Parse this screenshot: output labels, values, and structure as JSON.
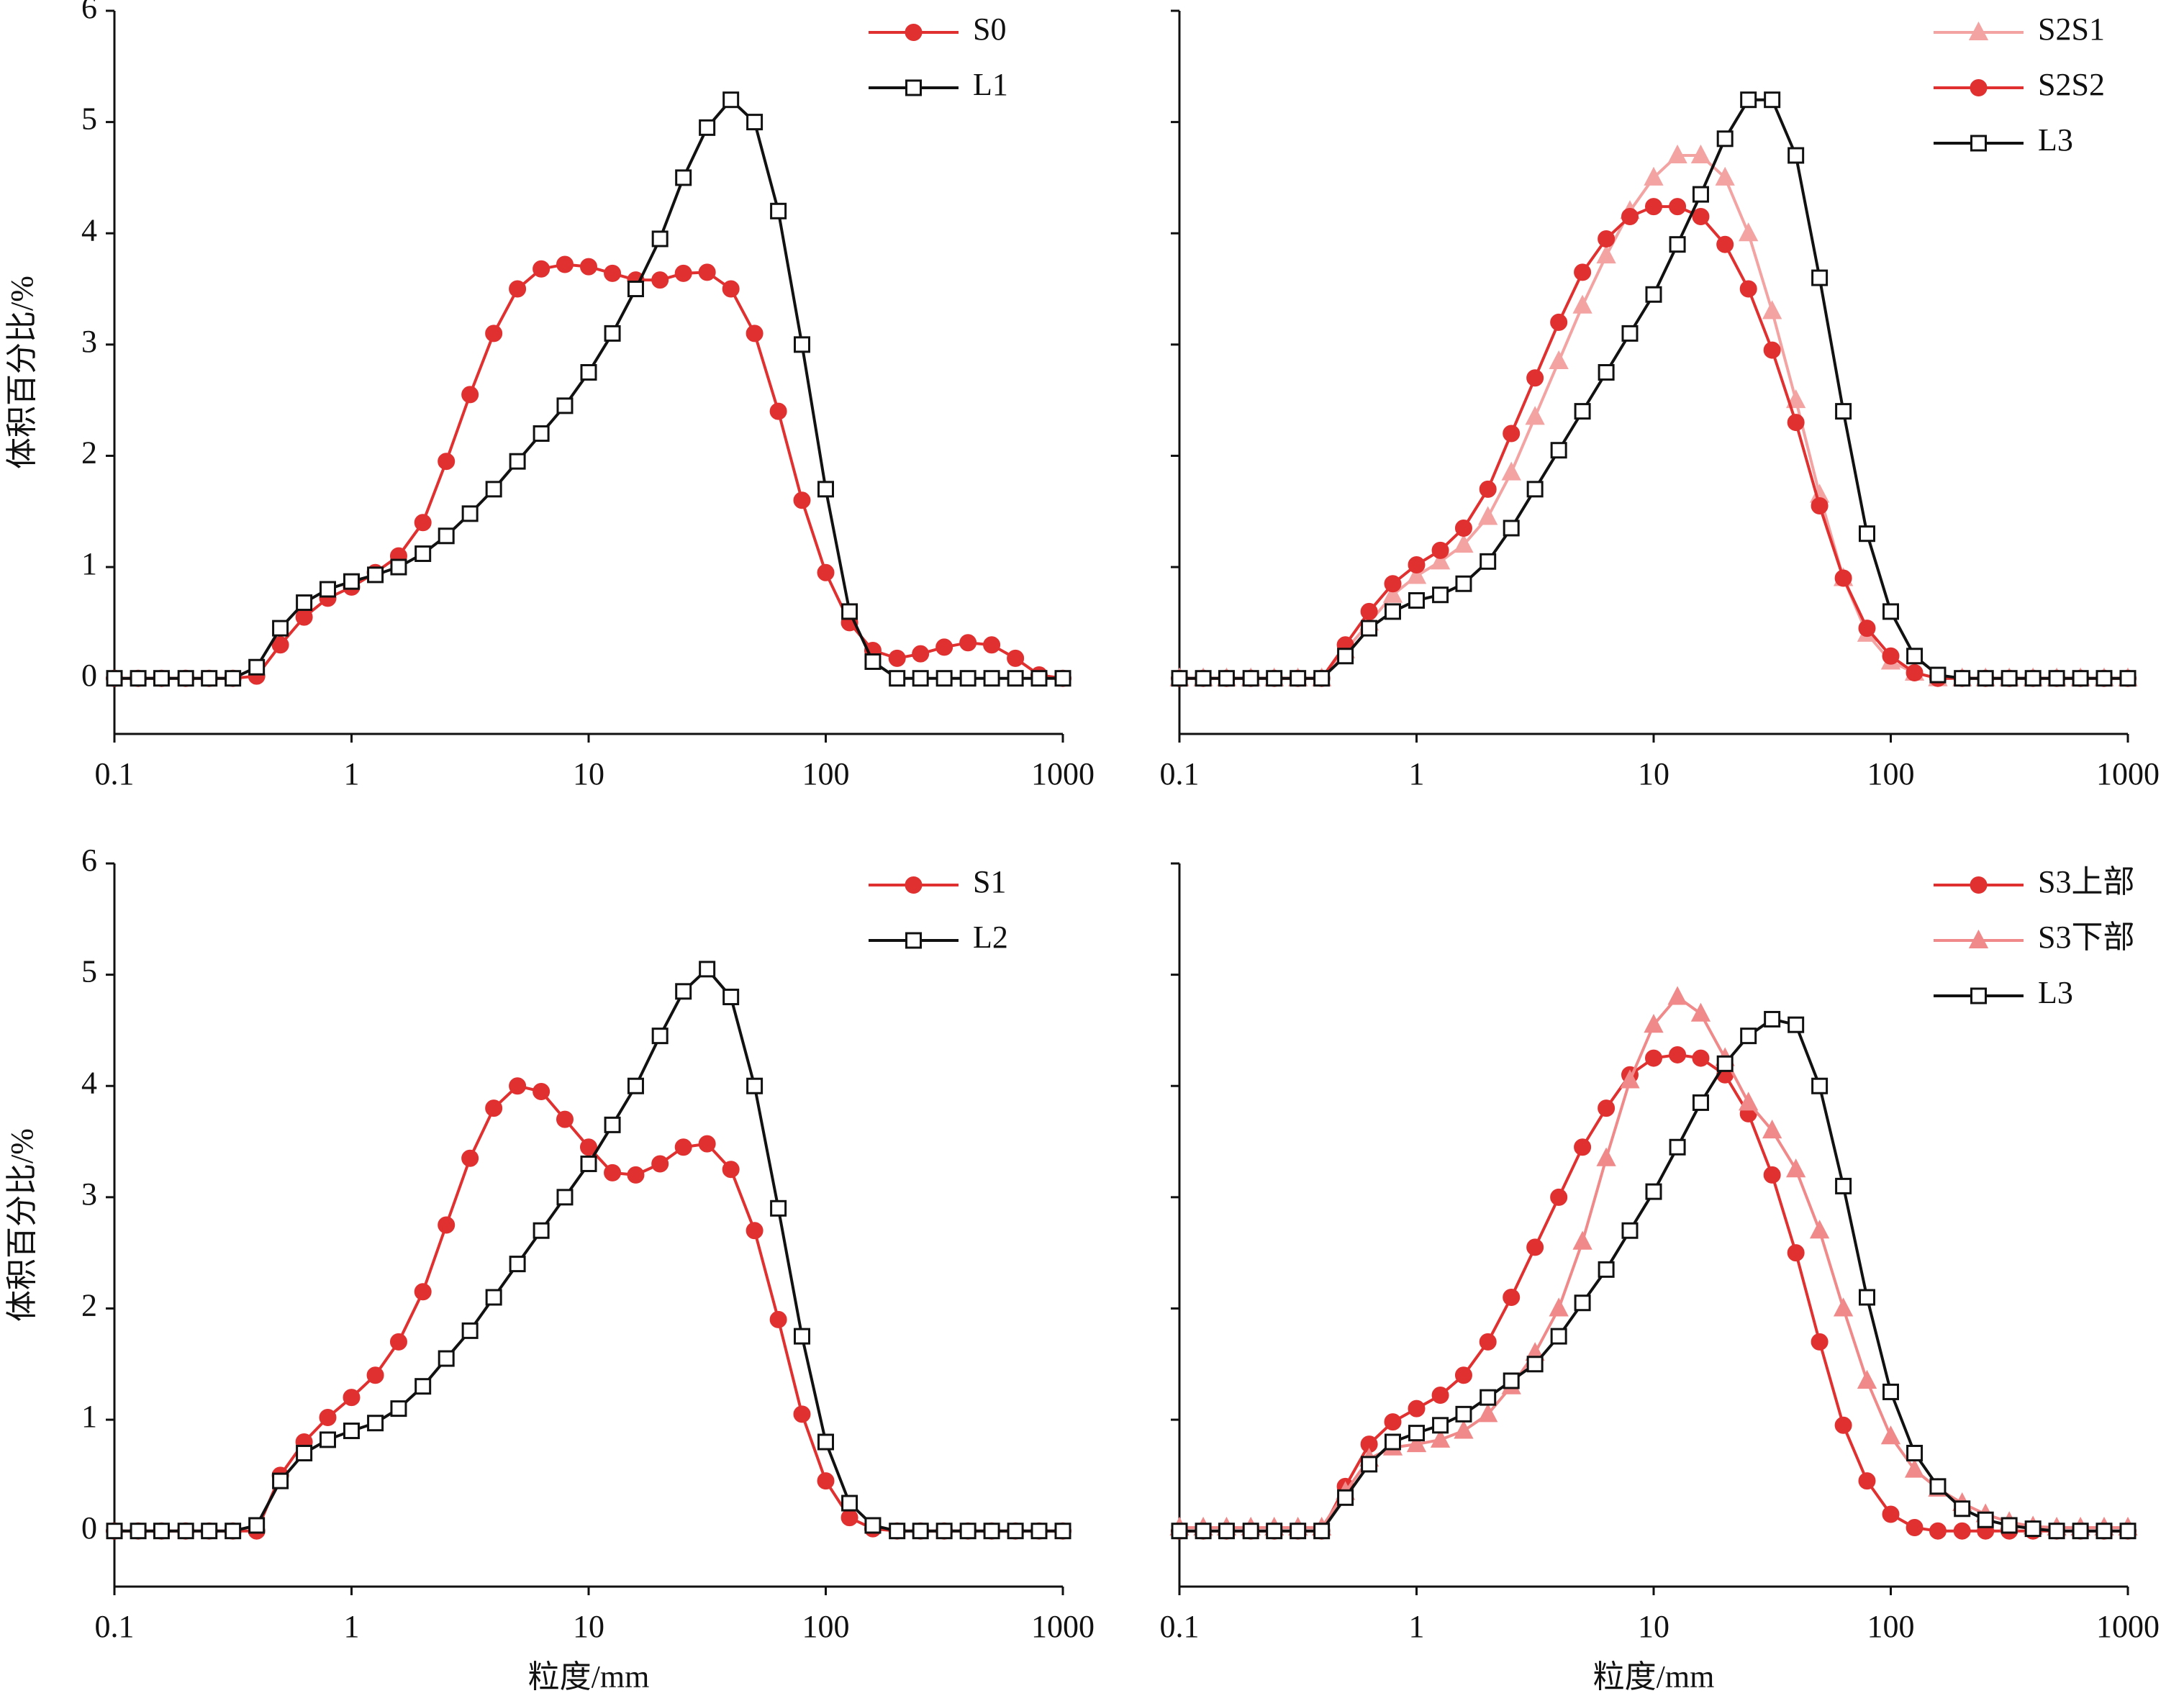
{
  "chart_data": [
    {
      "type": "line",
      "log_x": true,
      "legend": "upper right",
      "ytick_labels": true,
      "y_label": "体积百分比/%",
      "xlim": [
        0.1,
        1000
      ],
      "ylim": [
        -0.5,
        6
      ],
      "xticks": [
        0.1,
        1,
        10,
        100,
        1000
      ],
      "yticks": [
        0,
        1,
        2,
        3,
        4,
        5,
        6
      ],
      "x": [
        0.1,
        0.126,
        0.158,
        0.2,
        0.251,
        0.316,
        0.398,
        0.501,
        0.631,
        0.794,
        1,
        1.26,
        1.58,
        2,
        2.51,
        3.16,
        3.98,
        5.01,
        6.31,
        7.94,
        10,
        12.6,
        15.8,
        20,
        25.1,
        31.6,
        39.8,
        50.1,
        63.1,
        79.4,
        100,
        126,
        158,
        200,
        251,
        316,
        398,
        501,
        631,
        794,
        1000
      ],
      "series": [
        {
          "name": "S0",
          "color": "#e03030",
          "marker": "circle",
          "values": [
            0,
            0,
            0,
            0,
            0,
            0,
            0.02,
            0.3,
            0.55,
            0.72,
            0.82,
            0.95,
            1.1,
            1.4,
            1.95,
            2.55,
            3.1,
            3.5,
            3.68,
            3.72,
            3.7,
            3.64,
            3.58,
            3.58,
            3.64,
            3.65,
            3.5,
            3.1,
            2.4,
            1.6,
            0.95,
            0.5,
            0.25,
            0.18,
            0.22,
            0.28,
            0.32,
            0.3,
            0.18,
            0.03,
            0
          ]
        },
        {
          "name": "L1",
          "color": "#111111",
          "marker": "square",
          "values": [
            0,
            0,
            0,
            0,
            0,
            0,
            0.1,
            0.45,
            0.68,
            0.8,
            0.87,
            0.93,
            1.0,
            1.12,
            1.28,
            1.48,
            1.7,
            1.95,
            2.2,
            2.45,
            2.75,
            3.1,
            3.5,
            3.95,
            4.5,
            4.95,
            5.2,
            5.0,
            4.2,
            3.0,
            1.7,
            0.6,
            0.15,
            0,
            0,
            0,
            0,
            0,
            0,
            0,
            0
          ]
        }
      ]
    },
    {
      "type": "line",
      "log_x": true,
      "legend": "upper right",
      "ytick_labels": false,
      "xlim": [
        0.1,
        1000
      ],
      "ylim": [
        -0.5,
        6
      ],
      "xticks": [
        0.1,
        1,
        10,
        100,
        1000
      ],
      "yticks": [
        0,
        1,
        2,
        3,
        4,
        5,
        6
      ],
      "x": [
        0.1,
        0.126,
        0.158,
        0.2,
        0.251,
        0.316,
        0.398,
        0.501,
        0.631,
        0.794,
        1,
        1.26,
        1.58,
        2,
        2.51,
        3.16,
        3.98,
        5.01,
        6.31,
        7.94,
        10,
        12.6,
        15.8,
        20,
        25.1,
        31.6,
        39.8,
        50.1,
        63.1,
        79.4,
        100,
        126,
        158,
        200,
        251,
        316,
        398,
        501,
        631,
        794,
        1000
      ],
      "series": [
        {
          "name": "S2S1",
          "color": "#f4a3a3",
          "marker": "triangle",
          "values": [
            0,
            0,
            0,
            0,
            0,
            0,
            0,
            0.25,
            0.5,
            0.75,
            0.92,
            1.05,
            1.2,
            1.45,
            1.85,
            2.35,
            2.85,
            3.35,
            3.8,
            4.2,
            4.5,
            4.7,
            4.7,
            4.5,
            4.0,
            3.3,
            2.5,
            1.65,
            0.9,
            0.4,
            0.15,
            0.05,
            0,
            0,
            0,
            0,
            0,
            0,
            0,
            0,
            0
          ]
        },
        {
          "name": "S2S2",
          "color": "#e03030",
          "marker": "circle",
          "values": [
            0,
            0,
            0,
            0,
            0,
            0,
            0,
            0.3,
            0.6,
            0.85,
            1.02,
            1.15,
            1.35,
            1.7,
            2.2,
            2.7,
            3.2,
            3.65,
            3.95,
            4.15,
            4.24,
            4.24,
            4.15,
            3.9,
            3.5,
            2.95,
            2.3,
            1.55,
            0.9,
            0.45,
            0.2,
            0.05,
            0,
            0,
            0,
            0,
            0,
            0,
            0,
            0,
            0
          ]
        },
        {
          "name": "L3",
          "color": "#111111",
          "marker": "square",
          "values": [
            0,
            0,
            0,
            0,
            0,
            0,
            0,
            0.2,
            0.45,
            0.6,
            0.7,
            0.75,
            0.85,
            1.05,
            1.35,
            1.7,
            2.05,
            2.4,
            2.75,
            3.1,
            3.45,
            3.9,
            4.35,
            4.85,
            5.2,
            5.2,
            4.7,
            3.6,
            2.4,
            1.3,
            0.6,
            0.2,
            0.03,
            0,
            0,
            0,
            0,
            0,
            0,
            0,
            0
          ]
        }
      ]
    },
    {
      "type": "line",
      "log_x": true,
      "legend": "upper right",
      "ytick_labels": true,
      "y_label": "体积百分比/%",
      "x_label": "粒度/mm",
      "xlim": [
        0.1,
        1000
      ],
      "ylim": [
        -0.5,
        6
      ],
      "xticks": [
        0.1,
        1,
        10,
        100,
        1000
      ],
      "yticks": [
        0,
        1,
        2,
        3,
        4,
        5,
        6
      ],
      "x": [
        0.1,
        0.126,
        0.158,
        0.2,
        0.251,
        0.316,
        0.398,
        0.501,
        0.631,
        0.794,
        1,
        1.26,
        1.58,
        2,
        2.51,
        3.16,
        3.98,
        5.01,
        6.31,
        7.94,
        10,
        12.6,
        15.8,
        20,
        25.1,
        31.6,
        39.8,
        50.1,
        63.1,
        79.4,
        100,
        126,
        158,
        200,
        251,
        316,
        398,
        501,
        631,
        794,
        1000
      ],
      "series": [
        {
          "name": "S1",
          "color": "#e03030",
          "marker": "circle",
          "values": [
            0,
            0,
            0,
            0,
            0,
            0,
            0,
            0.5,
            0.8,
            1.02,
            1.2,
            1.4,
            1.7,
            2.15,
            2.75,
            3.35,
            3.8,
            4.0,
            3.95,
            3.7,
            3.45,
            3.22,
            3.2,
            3.3,
            3.45,
            3.48,
            3.25,
            2.7,
            1.9,
            1.05,
            0.45,
            0.12,
            0.02,
            0,
            0,
            0,
            0,
            0,
            0,
            0,
            0
          ]
        },
        {
          "name": "L2",
          "color": "#111111",
          "marker": "square",
          "values": [
            0,
            0,
            0,
            0,
            0,
            0,
            0.05,
            0.45,
            0.7,
            0.82,
            0.9,
            0.97,
            1.1,
            1.3,
            1.55,
            1.8,
            2.1,
            2.4,
            2.7,
            3.0,
            3.3,
            3.65,
            4.0,
            4.45,
            4.85,
            5.05,
            4.8,
            4.0,
            2.9,
            1.75,
            0.8,
            0.25,
            0.05,
            0,
            0,
            0,
            0,
            0,
            0,
            0,
            0
          ]
        }
      ]
    },
    {
      "type": "line",
      "log_x": true,
      "legend": "upper right",
      "ytick_labels": false,
      "x_label": "粒度/mm",
      "xlim": [
        0.1,
        1000
      ],
      "ylim": [
        -0.5,
        6
      ],
      "xticks": [
        0.1,
        1,
        10,
        100,
        1000
      ],
      "yticks": [
        0,
        1,
        2,
        3,
        4,
        5,
        6
      ],
      "x": [
        0.1,
        0.126,
        0.158,
        0.2,
        0.251,
        0.316,
        0.398,
        0.501,
        0.631,
        0.794,
        1,
        1.26,
        1.58,
        2,
        2.51,
        3.16,
        3.98,
        5.01,
        6.31,
        7.94,
        10,
        12.6,
        15.8,
        20,
        25.1,
        31.6,
        39.8,
        50.1,
        63.1,
        79.4,
        100,
        126,
        158,
        200,
        251,
        316,
        398,
        501,
        631,
        794,
        1000
      ],
      "series": [
        {
          "name": "S3上部",
          "color": "#e03030",
          "marker": "circle",
          "values": [
            0,
            0,
            0,
            0,
            0,
            0,
            0,
            0.4,
            0.78,
            0.98,
            1.1,
            1.22,
            1.4,
            1.7,
            2.1,
            2.55,
            3.0,
            3.45,
            3.8,
            4.1,
            4.25,
            4.28,
            4.25,
            4.1,
            3.75,
            3.2,
            2.5,
            1.7,
            0.95,
            0.45,
            0.15,
            0.03,
            0,
            0,
            0,
            0,
            0,
            0,
            0,
            0,
            0
          ]
        },
        {
          "name": "S3下部",
          "color": "#f08a8a",
          "marker": "triangle",
          "values": [
            0.03,
            0.03,
            0.03,
            0.03,
            0.03,
            0.03,
            0.03,
            0.35,
            0.65,
            0.75,
            0.78,
            0.82,
            0.9,
            1.05,
            1.3,
            1.6,
            2.0,
            2.6,
            3.35,
            4.05,
            4.55,
            4.8,
            4.65,
            4.25,
            3.85,
            3.6,
            3.25,
            2.7,
            2.0,
            1.35,
            0.85,
            0.55,
            0.38,
            0.25,
            0.15,
            0.08,
            0.04,
            0.03,
            0.03,
            0.03,
            0.03
          ]
        },
        {
          "name": "L3",
          "color": "#111111",
          "marker": "square",
          "values": [
            0,
            0,
            0,
            0,
            0,
            0,
            0,
            0.3,
            0.6,
            0.8,
            0.88,
            0.95,
            1.05,
            1.2,
            1.35,
            1.5,
            1.75,
            2.05,
            2.35,
            2.7,
            3.05,
            3.45,
            3.85,
            4.2,
            4.45,
            4.6,
            4.55,
            4.0,
            3.1,
            2.1,
            1.25,
            0.7,
            0.4,
            0.2,
            0.1,
            0.05,
            0.02,
            0,
            0,
            0,
            0
          ]
        }
      ]
    }
  ]
}
